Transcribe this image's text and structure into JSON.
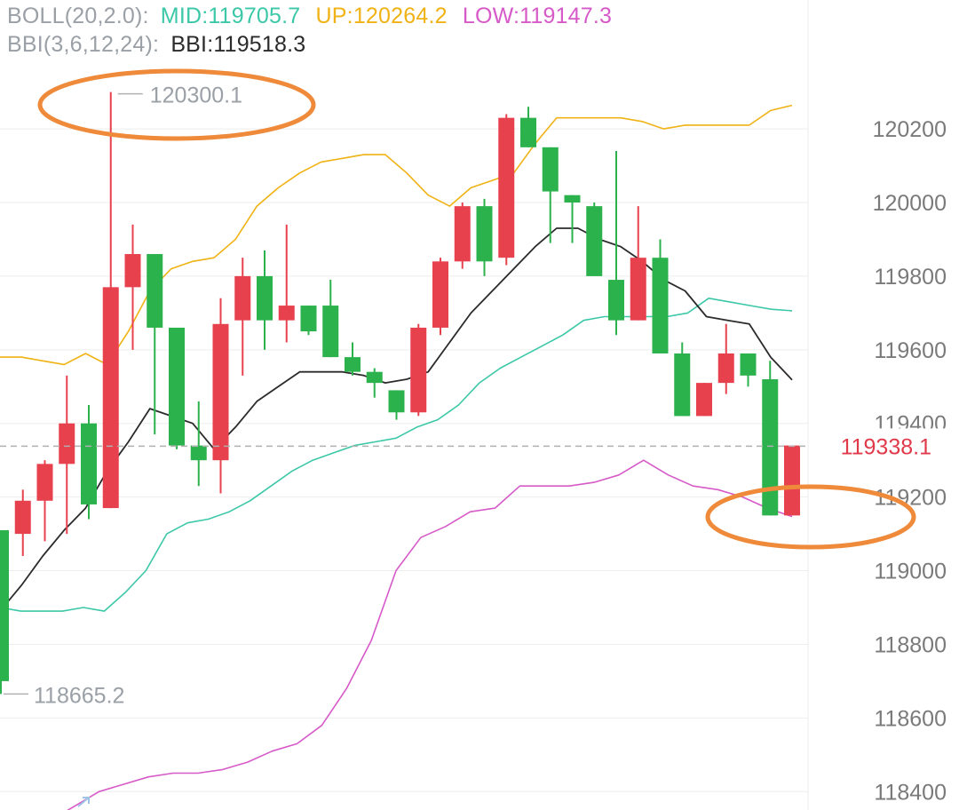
{
  "colors": {
    "up": "#e8414e",
    "down": "#2bb24c",
    "mid": "#3cc8a8",
    "upper": "#f0b214",
    "lower": "#d65ac8",
    "bbi": "#2b2b2b",
    "legend_label": "#9aa0a6",
    "axis_text": "#7a7a7a",
    "grid": "#eeeeee",
    "price_line": "#b0b0b0",
    "price_tag": "#e03a4a",
    "annotation": "#ee8a3a"
  },
  "legend": {
    "boll": {
      "label": "BOLL(20,2.0):",
      "mid": "MID:119705.7",
      "up": "UP:120264.2",
      "low": "LOW:119147.3"
    },
    "bbi": {
      "label": "BBI(3,6,12,24):",
      "value": "BBI:119518.3"
    }
  },
  "chart_data": {
    "type": "candlestick",
    "y_axis": {
      "min": 118350,
      "max": 120550,
      "ticks": [
        {
          "value": 120200,
          "label": "120200"
        },
        {
          "value": 120000,
          "label": "120000"
        },
        {
          "value": 119800,
          "label": "119800"
        },
        {
          "value": 119600,
          "label": "119600"
        },
        {
          "value": 119400,
          "label": "119400"
        },
        {
          "value": 119200,
          "label": "119200"
        },
        {
          "value": 119000,
          "label": "119000"
        },
        {
          "value": 118800,
          "label": "118800"
        },
        {
          "value": 118600,
          "label": "118600"
        },
        {
          "value": 118400,
          "label": "118400"
        }
      ]
    },
    "grid": true,
    "current_price": {
      "value": 119338.1,
      "label": "119338.1"
    },
    "high_marker": {
      "value": 120300.1,
      "label": "120300.1",
      "bar_index": 5
    },
    "low_marker": {
      "value": 118665.2,
      "label": "118665.2",
      "bar_index": 0
    },
    "candles": [
      {
        "open": 119110,
        "close": 118700,
        "high": 119110,
        "low": 118665
      },
      {
        "open": 119100,
        "close": 119190,
        "high": 119220,
        "low": 119040
      },
      {
        "open": 119190,
        "close": 119290,
        "high": 119300,
        "low": 119080
      },
      {
        "open": 119290,
        "close": 119400,
        "high": 119530,
        "low": 119100
      },
      {
        "open": 119400,
        "close": 119180,
        "high": 119450,
        "low": 119140
      },
      {
        "open": 119170,
        "close": 119770,
        "high": 120300.1,
        "low": 119170
      },
      {
        "open": 119770,
        "close": 119860,
        "high": 119940,
        "low": 119600
      },
      {
        "open": 119860,
        "close": 119660,
        "high": 119860,
        "low": 119370
      },
      {
        "open": 119660,
        "close": 119340,
        "high": 119660,
        "low": 119330
      },
      {
        "open": 119340,
        "close": 119300,
        "high": 119460,
        "low": 119230
      },
      {
        "open": 119300,
        "close": 119670,
        "high": 119740,
        "low": 119210
      },
      {
        "open": 119680,
        "close": 119800,
        "high": 119850,
        "low": 119530
      },
      {
        "open": 119800,
        "close": 119680,
        "high": 119870,
        "low": 119600
      },
      {
        "open": 119680,
        "close": 119720,
        "high": 119940,
        "low": 119620
      },
      {
        "open": 119720,
        "close": 119650,
        "high": 119720,
        "low": 119640
      },
      {
        "open": 119720,
        "close": 119580,
        "high": 119790,
        "low": 119580
      },
      {
        "open": 119580,
        "close": 119540,
        "high": 119620,
        "low": 119530
      },
      {
        "open": 119540,
        "close": 119510,
        "high": 119550,
        "low": 119470
      },
      {
        "open": 119490,
        "close": 119430,
        "high": 119490,
        "low": 119410
      },
      {
        "open": 119430,
        "close": 119660,
        "high": 119670,
        "low": 119420
      },
      {
        "open": 119660,
        "close": 119840,
        "high": 119850,
        "low": 119640
      },
      {
        "open": 119840,
        "close": 119990,
        "high": 120000,
        "low": 119820
      },
      {
        "open": 119990,
        "close": 119840,
        "high": 120010,
        "low": 119800
      },
      {
        "open": 119850,
        "close": 120230,
        "high": 120240,
        "low": 119830
      },
      {
        "open": 120230,
        "close": 120150,
        "high": 120260,
        "low": 120150
      },
      {
        "open": 120150,
        "close": 120030,
        "high": 120150,
        "low": 119890
      },
      {
        "open": 120020,
        "close": 120000,
        "high": 120020,
        "low": 119890
      },
      {
        "open": 119990,
        "close": 119800,
        "high": 120000,
        "low": 119800
      },
      {
        "open": 119790,
        "close": 119680,
        "high": 120140,
        "low": 119640
      },
      {
        "open": 119680,
        "close": 119850,
        "high": 119990,
        "low": 119680
      },
      {
        "open": 119850,
        "close": 119590,
        "high": 119900,
        "low": 119590
      },
      {
        "open": 119590,
        "close": 119420,
        "high": 119620,
        "low": 119420
      },
      {
        "open": 119420,
        "close": 119510,
        "high": 119510,
        "low": 119420
      },
      {
        "open": 119510,
        "close": 119590,
        "high": 119670,
        "low": 119480
      },
      {
        "open": 119590,
        "close": 119530,
        "high": 119590,
        "low": 119500
      },
      {
        "open": 119520,
        "close": 119150,
        "high": 119570,
        "low": 119150
      },
      {
        "open": 119150,
        "close": 119340,
        "high": 119340,
        "low": 119150
      }
    ],
    "series": [
      {
        "key": "upper",
        "values": [
          119580,
          119580,
          119570,
          119560,
          119590,
          119560,
          119650,
          119760,
          119820,
          119840,
          119850,
          119900,
          119990,
          120040,
          120080,
          120110,
          120120,
          120130,
          120130,
          120080,
          120020,
          119990,
          120040,
          120060,
          120080,
          120160,
          120230,
          120230,
          120230,
          120230,
          120220,
          120200,
          120210,
          120210,
          120210,
          120210,
          120250,
          120264
        ]
      },
      {
        "key": "mid",
        "values": [
          118900,
          118890,
          118890,
          118890,
          118900,
          118890,
          118940,
          119000,
          119100,
          119130,
          119140,
          119160,
          119190,
          119230,
          119270,
          119300,
          119320,
          119340,
          119350,
          119360,
          119390,
          119410,
          119450,
          119510,
          119550,
          119580,
          119610,
          119640,
          119680,
          119690,
          119690,
          119690,
          119690,
          119700,
          119740,
          119730,
          119720,
          119710,
          119706
        ]
      },
      {
        "key": "lower",
        "values": [
          118260,
          118280,
          118320,
          118360,
          118400,
          118420,
          118440,
          118450,
          118450,
          118460,
          118480,
          118510,
          118530,
          118580,
          118680,
          118810,
          119000,
          119090,
          119120,
          119160,
          119170,
          119230,
          119230,
          119230,
          119240,
          119260,
          119300,
          119260,
          119230,
          119220,
          119200,
          119170,
          119147
        ]
      },
      {
        "key": "bbi",
        "values": [
          118890,
          118960,
          119040,
          119110,
          119170,
          119270,
          119350,
          119440,
          119420,
          119400,
          119330,
          119390,
          119460,
          119500,
          119540,
          119540,
          119540,
          119530,
          119510,
          119520,
          119540,
          119620,
          119700,
          119760,
          119820,
          119880,
          119930,
          119930,
          119900,
          119880,
          119840,
          119790,
          119760,
          119690,
          119680,
          119670,
          119580,
          119518.3
        ]
      }
    ]
  }
}
